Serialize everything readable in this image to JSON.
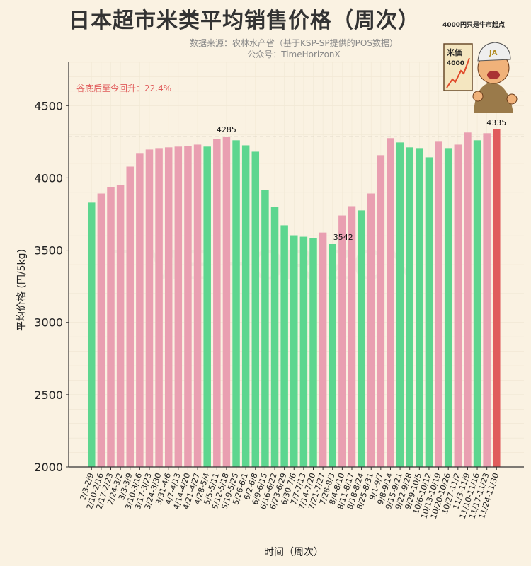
{
  "chart_data": {
    "type": "bar",
    "title": "日本超市米类平均销售价格（周次）",
    "subtitle_lines": [
      "数据来源：农林水产省（基于KSP-SP提供的POS数据）",
      "公众号：TimeHorizonX"
    ],
    "xlabel": "时间（周次）",
    "ylabel": "平均价格 (円/5kg)",
    "ylim": [
      2000,
      4800
    ],
    "yticks": [
      2000,
      2500,
      3000,
      3500,
      4000,
      4500
    ],
    "grid": true,
    "annotation": "谷底后至今回升：22.4%",
    "reference_line": 4285,
    "labeled_points": [
      {
        "index": 14,
        "label": "4285"
      },
      {
        "index": 25,
        "label": "3542"
      },
      {
        "index": 42,
        "label": "4335"
      }
    ],
    "categories": [
      "2/3-2/9",
      "2/10-2/16",
      "2/17-2/23",
      "2/24-3/2",
      "3/3-3/9",
      "3/10-3/16",
      "3/17-3/23",
      "3/24-3/30",
      "3/31-4/6",
      "4/7-4/13",
      "4/14-4/20",
      "4/21-4/27",
      "4/28-5/4",
      "5/5-5/11",
      "5/12-5/18",
      "5/19-5/25",
      "5/26-6/1",
      "6/2-6/8",
      "6/9-6/15",
      "6/16-6/22",
      "6/23-6/29",
      "6/30-7/6",
      "7/7-7/13",
      "7/14-7/20",
      "7/21-7/27",
      "7/28-8/3",
      "8/4-8/10",
      "8/11-8/17",
      "8/18-8/24",
      "8/25-8/31",
      "9/1-9/7",
      "9/8-9/14",
      "9/15-9/21",
      "9/22-9/28",
      "9/29-10/5",
      "10/6-10/12",
      "10/13-10/19",
      "10/20-10/26",
      "10/27-11/2",
      "11/3-11/9",
      "11/10-11/16",
      "11/17-11/23",
      "11/24-11/30"
    ],
    "values": [
      3829,
      3892,
      3936,
      3951,
      4078,
      4172,
      4196,
      4206,
      4211,
      4216,
      4220,
      4230,
      4216,
      4270,
      4285,
      4260,
      4225,
      4181,
      3917,
      3800,
      3672,
      3603,
      3593,
      3583,
      3622,
      3542,
      3740,
      3804,
      3775,
      3892,
      4157,
      4275,
      4245,
      4211,
      4206,
      4142,
      4250,
      4206,
      4230,
      4314,
      4260,
      4309,
      4335
    ],
    "colors": {
      "increase": "#e99fb1",
      "decrease": "#5dd68f",
      "latest": "#e05c5c",
      "reference_line": "#c9c2b0"
    }
  },
  "watermark": "TIME HORIZON",
  "illustration": {
    "caption": "4000円只是牛市起点",
    "sign_text": "米価",
    "sign_number": "4000",
    "cap_text": "JA"
  }
}
